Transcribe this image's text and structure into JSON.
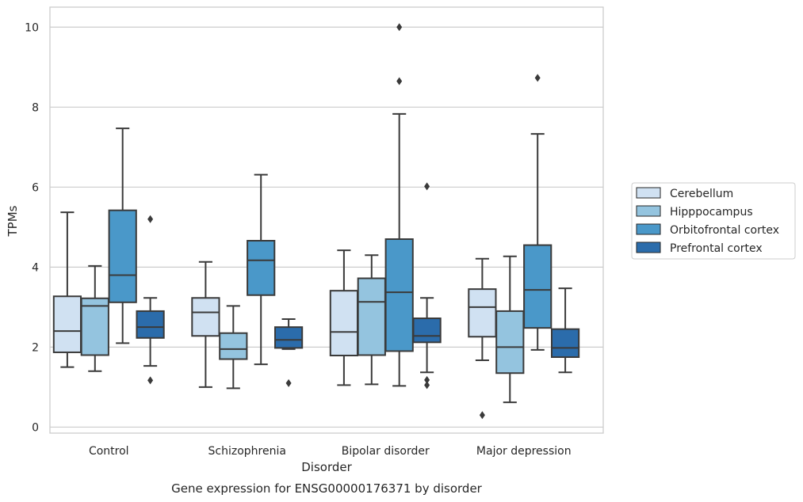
{
  "chart_data": {
    "type": "box",
    "title": "",
    "caption": "Gene expression for ENSG00000176371 by disorder",
    "xlabel": "Disorder",
    "ylabel": "TPMs",
    "ylim": [
      -0.15,
      10.5
    ],
    "yticks": [
      0,
      2,
      4,
      6,
      8,
      10
    ],
    "grid": "horizontal",
    "legend_position": "right",
    "categories": [
      "Control",
      "Schizophrenia",
      "Bipolar disorder",
      "Major depression"
    ],
    "series": [
      {
        "name": "Cerebellum",
        "color": "#d0e1f2",
        "boxes": [
          {
            "whisker_low": 1.5,
            "q1": 1.87,
            "median": 2.4,
            "q3": 3.27,
            "whisker_high": 5.37,
            "outliers": []
          },
          {
            "whisker_low": 1.0,
            "q1": 2.28,
            "median": 2.87,
            "q3": 3.23,
            "whisker_high": 4.13,
            "outliers": []
          },
          {
            "whisker_low": 1.05,
            "q1": 1.79,
            "median": 2.38,
            "q3": 3.41,
            "whisker_high": 4.42,
            "outliers": []
          },
          {
            "whisker_low": 1.67,
            "q1": 2.26,
            "median": 3.0,
            "q3": 3.45,
            "whisker_high": 4.21,
            "outliers": [
              0.3
            ]
          }
        ]
      },
      {
        "name": "Hipppocampus",
        "color": "#94c4df",
        "boxes": [
          {
            "whisker_low": 1.4,
            "q1": 1.8,
            "median": 3.03,
            "q3": 3.22,
            "whisker_high": 4.03,
            "outliers": []
          },
          {
            "whisker_low": 0.97,
            "q1": 1.7,
            "median": 1.95,
            "q3": 2.35,
            "whisker_high": 3.03,
            "outliers": []
          },
          {
            "whisker_low": 1.07,
            "q1": 1.8,
            "median": 3.13,
            "q3": 3.72,
            "whisker_high": 4.3,
            "outliers": []
          },
          {
            "whisker_low": 0.62,
            "q1": 1.35,
            "median": 2.0,
            "q3": 2.9,
            "whisker_high": 4.27,
            "outliers": []
          }
        ]
      },
      {
        "name": "Orbitofrontal cortex",
        "color": "#4a98c9",
        "boxes": [
          {
            "whisker_low": 2.1,
            "q1": 3.12,
            "median": 3.8,
            "q3": 5.42,
            "whisker_high": 7.47,
            "outliers": []
          },
          {
            "whisker_low": 1.57,
            "q1": 3.3,
            "median": 4.17,
            "q3": 4.66,
            "whisker_high": 6.31,
            "outliers": []
          },
          {
            "whisker_low": 1.03,
            "q1": 1.9,
            "median": 3.37,
            "q3": 4.7,
            "whisker_high": 7.83,
            "outliers": [
              8.65,
              10.0
            ]
          },
          {
            "whisker_low": 1.93,
            "q1": 2.48,
            "median": 3.43,
            "q3": 4.55,
            "whisker_high": 7.33,
            "outliers": [
              8.73
            ]
          }
        ]
      },
      {
        "name": "Prefrontal cortex",
        "color": "#2b6cab",
        "boxes": [
          {
            "whisker_low": 1.53,
            "q1": 2.23,
            "median": 2.5,
            "q3": 2.9,
            "whisker_high": 3.23,
            "outliers": [
              1.17,
              5.2
            ]
          },
          {
            "whisker_low": 1.95,
            "q1": 1.98,
            "median": 2.18,
            "q3": 2.5,
            "whisker_high": 2.7,
            "outliers": [
              1.1
            ]
          },
          {
            "whisker_low": 1.37,
            "q1": 2.12,
            "median": 2.28,
            "q3": 2.72,
            "whisker_high": 3.23,
            "outliers": [
              1.05,
              1.18,
              6.02
            ]
          },
          {
            "whisker_low": 1.37,
            "q1": 1.75,
            "median": 1.98,
            "q3": 2.45,
            "whisker_high": 3.47,
            "outliers": []
          }
        ]
      }
    ]
  }
}
